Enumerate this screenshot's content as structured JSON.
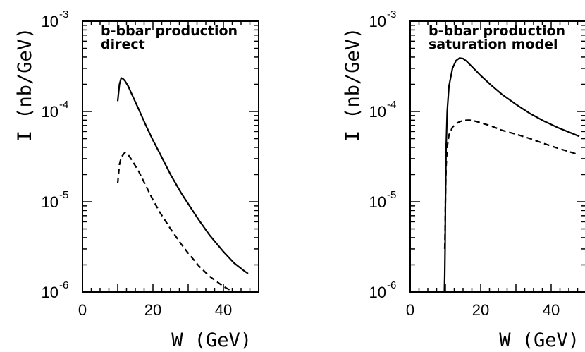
{
  "chart_data": [
    {
      "type": "line",
      "xlabel": "W (GeV)",
      "ylabel": "I (nb/GeV)",
      "xlim": [
        0,
        50
      ],
      "ylim": [
        1e-06,
        0.001
      ],
      "yscale": "log",
      "x_ticks": [
        "0",
        "20",
        "40"
      ],
      "y_ticks": [
        {
          "base": "10",
          "exp": "-3"
        },
        {
          "base": "10",
          "exp": "-4"
        },
        {
          "base": "10",
          "exp": "-5"
        },
        {
          "base": "10",
          "exp": "-6"
        }
      ],
      "annotation": [
        "b-bbar production",
        "direct"
      ],
      "grid": false,
      "series": [
        {
          "style": "solid",
          "x": [
            10,
            10.5,
            11,
            11.5,
            12,
            13,
            14,
            16,
            18,
            20,
            22,
            25,
            28,
            30,
            33,
            36,
            40,
            43,
            46,
            47
          ],
          "y": [
            0.00013,
            0.0002,
            0.000235,
            0.00023,
            0.00022,
            0.00019,
            0.000155,
            0.000105,
            7e-05,
            4.8e-05,
            3.4e-05,
            2e-05,
            1.25e-05,
            9.5e-06,
            6.3e-06,
            4.3e-06,
            2.8e-06,
            2.1e-06,
            1.7e-06,
            1.6e-06
          ]
        },
        {
          "style": "dashed",
          "x": [
            10,
            10.5,
            11,
            12,
            13,
            14,
            16,
            18,
            20,
            22,
            25,
            28,
            30,
            33,
            36,
            40,
            43,
            45,
            46
          ],
          "y": [
            1.6e-05,
            2.6e-05,
            3.1e-05,
            3.5e-05,
            3.3e-05,
            2.9e-05,
            2.15e-05,
            1.5e-05,
            1.05e-05,
            7.6e-06,
            5e-06,
            3.4e-06,
            2.7e-06,
            1.95e-06,
            1.5e-06,
            1.15e-06,
            1e-06,
            1e-06,
            1e-06
          ]
        }
      ]
    },
    {
      "type": "line",
      "xlabel": "W (GeV)",
      "ylabel": "I (nb/GeV)",
      "xlim": [
        0,
        50
      ],
      "ylim": [
        1e-06,
        0.001
      ],
      "yscale": "log",
      "x_ticks": [
        "0",
        "20",
        "40"
      ],
      "y_ticks": [
        {
          "base": "10",
          "exp": "-3"
        },
        {
          "base": "10",
          "exp": "-4"
        },
        {
          "base": "10",
          "exp": "-5"
        },
        {
          "base": "10",
          "exp": "-6"
        }
      ],
      "annotation": [
        "b-bbar production",
        "saturation model"
      ],
      "grid": false,
      "series": [
        {
          "style": "solid",
          "x": [
            9.7,
            9.8,
            9.9,
            10.0,
            10.2,
            10.5,
            11,
            12,
            13,
            14,
            15,
            16,
            18,
            20,
            23,
            26,
            30,
            34,
            38,
            42,
            46,
            48
          ],
          "y": [
            1e-06,
            1.5e-06,
            3e-06,
            1e-05,
            4e-05,
            0.0001,
            0.00019,
            0.0003,
            0.000365,
            0.00039,
            0.000385,
            0.00036,
            0.0003,
            0.00025,
            0.000195,
            0.000155,
            0.00012,
            9.5e-05,
            7.8e-05,
            6.6e-05,
            5.7e-05,
            5.3e-05
          ]
        },
        {
          "style": "dashed",
          "x": [
            9.8,
            9.9,
            10.0,
            10.2,
            10.5,
            11,
            12,
            13,
            14,
            15,
            16,
            17,
            18,
            20,
            23,
            26,
            30,
            34,
            38,
            42,
            46,
            48
          ],
          "y": [
            3e-06,
            5e-06,
            1e-05,
            2.5e-05,
            4e-05,
            5.5e-05,
            6.7e-05,
            7.3e-05,
            7.7e-05,
            7.9e-05,
            8e-05,
            8e-05,
            7.9e-05,
            7.5e-05,
            6.9e-05,
            6.2e-05,
            5.6e-05,
            5e-05,
            4.4e-05,
            3.9e-05,
            3.5e-05,
            3.3e-05
          ]
        }
      ]
    }
  ]
}
